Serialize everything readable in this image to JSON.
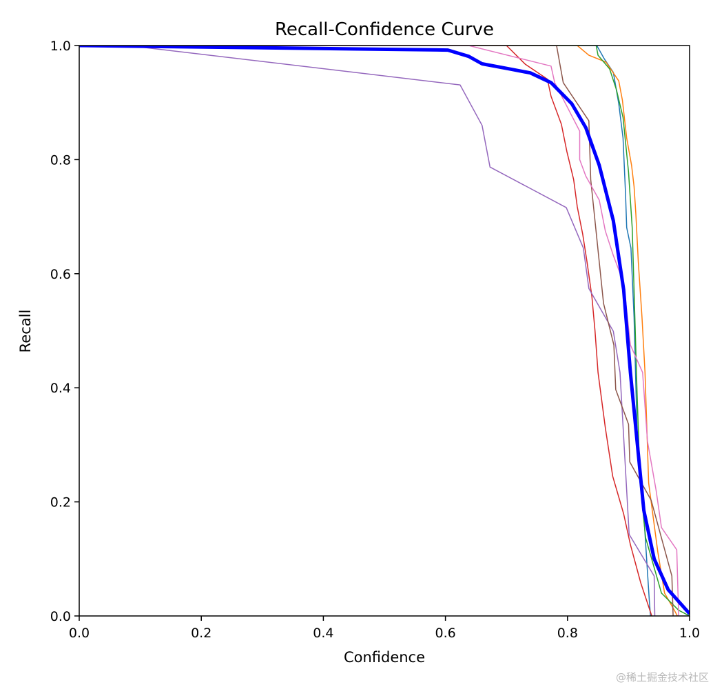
{
  "chart_data": {
    "type": "line",
    "title": "Recall-Confidence Curve",
    "xlabel": "Confidence",
    "ylabel": "Recall",
    "xlim": [
      0,
      1
    ],
    "ylim": [
      0,
      1
    ],
    "xticks": [
      "0.0",
      "0.2",
      "0.4",
      "0.6",
      "0.8",
      "1.0"
    ],
    "yticks": [
      "0.0",
      "0.2",
      "0.4",
      "0.6",
      "0.8",
      "1.0"
    ],
    "grid": false,
    "series": [
      {
        "color": "#1f77b4",
        "width": 1.5,
        "points": [
          [
            0,
            1
          ],
          [
            0.848,
            1.0
          ],
          [
            0.86,
            0.977
          ],
          [
            0.875,
            0.953
          ],
          [
            0.884,
            0.898
          ],
          [
            0.891,
            0.838
          ],
          [
            0.895,
            0.741
          ],
          [
            0.897,
            0.681
          ],
          [
            0.904,
            0.645
          ],
          [
            0.909,
            0.524
          ],
          [
            0.915,
            0.282
          ],
          [
            0.926,
            0.161
          ],
          [
            0.934,
            0.028
          ],
          [
            0.936,
            0
          ]
        ]
      },
      {
        "color": "#ff7f0e",
        "width": 1.5,
        "points": [
          [
            0,
            1
          ],
          [
            0.816,
            1.0
          ],
          [
            0.835,
            0.983
          ],
          [
            0.863,
            0.971
          ],
          [
            0.884,
            0.938
          ],
          [
            0.89,
            0.904
          ],
          [
            0.897,
            0.838
          ],
          [
            0.905,
            0.79
          ],
          [
            0.909,
            0.753
          ],
          [
            0.912,
            0.705
          ],
          [
            0.916,
            0.62
          ],
          [
            0.922,
            0.524
          ],
          [
            0.927,
            0.427
          ],
          [
            0.933,
            0.233
          ],
          [
            0.948,
            0.112
          ],
          [
            0.959,
            0.04
          ],
          [
            0.975,
            0.01
          ],
          [
            0.98,
            0
          ]
        ]
      },
      {
        "color": "#2ca02c",
        "width": 1.5,
        "points": [
          [
            0,
            1
          ],
          [
            0.847,
            1.0
          ],
          [
            0.85,
            0.983
          ],
          [
            0.869,
            0.959
          ],
          [
            0.88,
            0.923
          ],
          [
            0.891,
            0.874
          ],
          [
            0.9,
            0.778
          ],
          [
            0.906,
            0.681
          ],
          [
            0.909,
            0.572
          ],
          [
            0.914,
            0.391
          ],
          [
            0.919,
            0.233
          ],
          [
            0.928,
            0.137
          ],
          [
            0.954,
            0.04
          ],
          [
            0.982,
            0.01
          ],
          [
            1.0,
            0
          ]
        ]
      },
      {
        "color": "#d62728",
        "width": 1.5,
        "points": [
          [
            0,
            1
          ],
          [
            0.7,
            1.0
          ],
          [
            0.731,
            0.967
          ],
          [
            0.767,
            0.941
          ],
          [
            0.773,
            0.911
          ],
          [
            0.79,
            0.862
          ],
          [
            0.799,
            0.814
          ],
          [
            0.81,
            0.765
          ],
          [
            0.816,
            0.717
          ],
          [
            0.825,
            0.669
          ],
          [
            0.832,
            0.62
          ],
          [
            0.84,
            0.56
          ],
          [
            0.845,
            0.5
          ],
          [
            0.85,
            0.427
          ],
          [
            0.862,
            0.33
          ],
          [
            0.874,
            0.245
          ],
          [
            0.892,
            0.179
          ],
          [
            0.903,
            0.125
          ],
          [
            0.92,
            0.058
          ],
          [
            0.938,
            0
          ]
        ]
      },
      {
        "color": "#9467bd",
        "width": 1.5,
        "points": [
          [
            0,
            1
          ],
          [
            0.096,
            0.998
          ],
          [
            0.624,
            0.931
          ],
          [
            0.66,
            0.86
          ],
          [
            0.673,
            0.787
          ],
          [
            0.798,
            0.716
          ],
          [
            0.826,
            0.645
          ],
          [
            0.835,
            0.574
          ],
          [
            0.875,
            0.499
          ],
          [
            0.886,
            0.427
          ],
          [
            0.901,
            0.143
          ],
          [
            0.942,
            0.07
          ],
          [
            0.943,
            0
          ]
        ]
      },
      {
        "color": "#8c564b",
        "width": 1.5,
        "points": [
          [
            0,
            1
          ],
          [
            0.782,
            1.0
          ],
          [
            0.793,
            0.935
          ],
          [
            0.835,
            0.868
          ],
          [
            0.838,
            0.765
          ],
          [
            0.859,
            0.548
          ],
          [
            0.876,
            0.475
          ],
          [
            0.879,
            0.397
          ],
          [
            0.9,
            0.336
          ],
          [
            0.902,
            0.27
          ],
          [
            0.937,
            0.203
          ],
          [
            0.971,
            0.07
          ],
          [
            0.973,
            0
          ]
        ]
      },
      {
        "color": "#e377c2",
        "width": 1.5,
        "points": [
          [
            0,
            1
          ],
          [
            0.638,
            1.0
          ],
          [
            0.773,
            0.964
          ],
          [
            0.779,
            0.935
          ],
          [
            0.82,
            0.85
          ],
          [
            0.82,
            0.8
          ],
          [
            0.83,
            0.771
          ],
          [
            0.852,
            0.729
          ],
          [
            0.862,
            0.675
          ],
          [
            0.875,
            0.632
          ],
          [
            0.892,
            0.584
          ],
          [
            0.903,
            0.475
          ],
          [
            0.923,
            0.427
          ],
          [
            0.931,
            0.306
          ],
          [
            0.945,
            0.221
          ],
          [
            0.954,
            0.155
          ],
          [
            0.979,
            0.116
          ],
          [
            0.982,
            0
          ]
        ]
      },
      {
        "color": "#0000ff",
        "width": 5,
        "points": [
          [
            0,
            1
          ],
          [
            0.604,
            0.992
          ],
          [
            0.638,
            0.981
          ],
          [
            0.66,
            0.968
          ],
          [
            0.705,
            0.959
          ],
          [
            0.739,
            0.952
          ],
          [
            0.773,
            0.935
          ],
          [
            0.807,
            0.898
          ],
          [
            0.83,
            0.856
          ],
          [
            0.852,
            0.79
          ],
          [
            0.875,
            0.693
          ],
          [
            0.892,
            0.572
          ],
          [
            0.903,
            0.427
          ],
          [
            0.914,
            0.306
          ],
          [
            0.925,
            0.185
          ],
          [
            0.942,
            0.1
          ],
          [
            0.965,
            0.046
          ],
          [
            1.0,
            0.004
          ]
        ]
      }
    ]
  },
  "watermark": "@稀土掘金技术社区"
}
